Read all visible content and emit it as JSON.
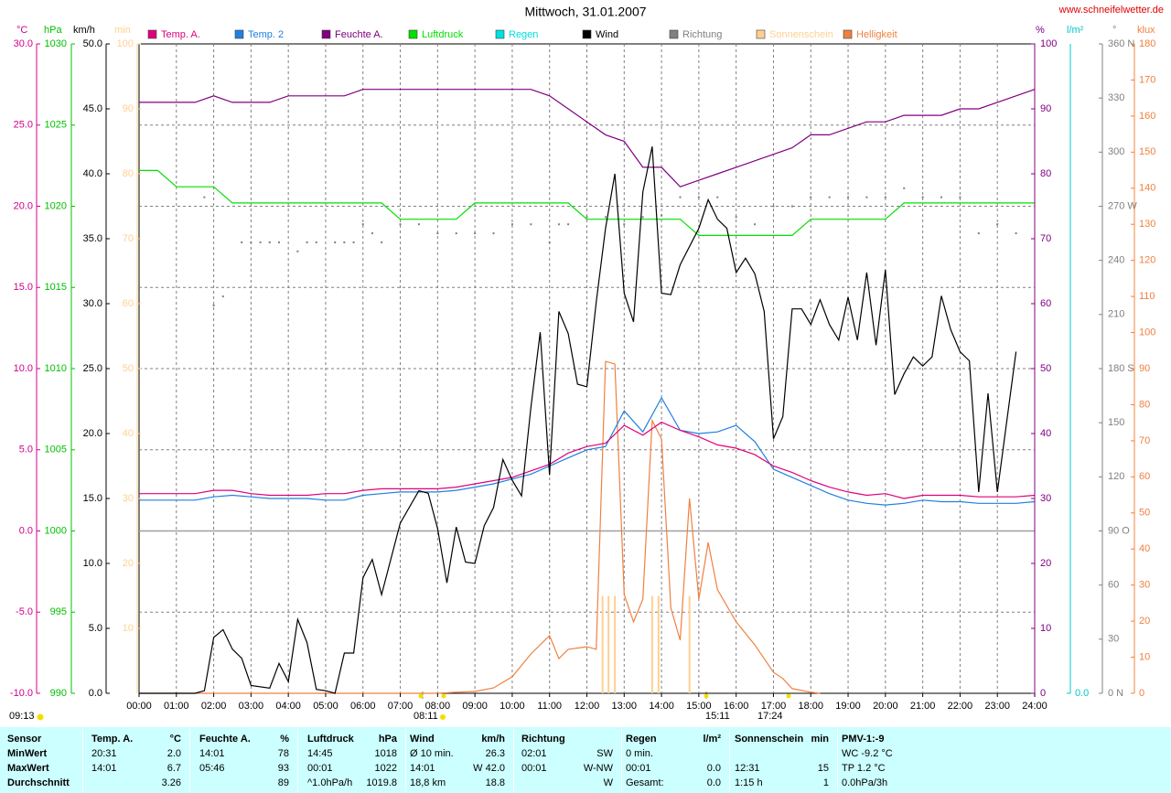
{
  "chart_data": {
    "type": "line",
    "title": "Mittwoch, 31.01.2007",
    "source": "www.schneifelwetter.de",
    "grid": true,
    "xlim": [
      0,
      24
    ],
    "xticks": [
      {
        "value": 0,
        "label": "00:00"
      },
      {
        "value": 1,
        "label": "01:00"
      },
      {
        "value": 2,
        "label": "02:00"
      },
      {
        "value": 3,
        "label": "03:00"
      },
      {
        "value": 4,
        "label": "04:00"
      },
      {
        "value": 5,
        "label": "05:00"
      },
      {
        "value": 6,
        "label": "06:00"
      },
      {
        "value": 7,
        "label": "07:00"
      },
      {
        "value": 8,
        "label": "08:00"
      },
      {
        "value": 9,
        "label": "09:00"
      },
      {
        "value": 10,
        "label": "10:00"
      },
      {
        "value": 11,
        "label": "11:00"
      },
      {
        "value": 12,
        "label": "12:00"
      },
      {
        "value": 13,
        "label": "13:00"
      },
      {
        "value": 14,
        "label": "14:00"
      },
      {
        "value": 15,
        "label": "15:00"
      },
      {
        "value": 16,
        "label": "16:00"
      },
      {
        "value": 17,
        "label": "17:00"
      },
      {
        "value": 18,
        "label": "18:00"
      },
      {
        "value": 19,
        "label": "19:00"
      },
      {
        "value": 20,
        "label": "20:00"
      },
      {
        "value": 21,
        "label": "21:00"
      },
      {
        "value": 22,
        "label": "22:00"
      },
      {
        "value": 23,
        "label": "23:00"
      },
      {
        "value": 24,
        "label": "24:00"
      }
    ],
    "axes": [
      {
        "label": "°C",
        "color": "#d0008c",
        "lim": [
          -10,
          30
        ],
        "ticks": [
          {
            "value": -10,
            "label": "-10.0"
          },
          {
            "value": -5,
            "label": "-5.0"
          },
          {
            "value": 0,
            "label": "0.0"
          },
          {
            "value": 5,
            "label": "5.0"
          },
          {
            "value": 10,
            "label": "10.0"
          },
          {
            "value": 15,
            "label": "15.0"
          },
          {
            "value": 20,
            "label": "20.0"
          },
          {
            "value": 25,
            "label": "25.0"
          },
          {
            "value": 30,
            "label": "30.0"
          }
        ]
      },
      {
        "label": "hPa",
        "color": "#00c000",
        "lim": [
          990,
          1030
        ],
        "ticks": [
          990,
          995,
          1000,
          1005,
          1010,
          1015,
          1020,
          1025,
          1030
        ]
      },
      {
        "label": "km/h",
        "color": "#000000",
        "lim": [
          0,
          50
        ],
        "ticks": [
          {
            "value": 0,
            "label": "0.0"
          },
          {
            "value": 5,
            "label": "5.0"
          },
          {
            "value": 10,
            "label": "10.0"
          },
          {
            "value": 15,
            "label": "15.0"
          },
          {
            "value": 20,
            "label": "20.0"
          },
          {
            "value": 25,
            "label": "25.0"
          },
          {
            "value": 30,
            "label": "30.0"
          },
          {
            "value": 35,
            "label": "35.0"
          },
          {
            "value": 40,
            "label": "40.0"
          },
          {
            "value": 45,
            "label": "45.0"
          },
          {
            "value": 50,
            "label": "50.0"
          }
        ]
      },
      {
        "label": "min",
        "color": "#ffd090",
        "lim": [
          0,
          100
        ],
        "ticks": [
          10,
          20,
          30,
          40,
          50,
          60,
          70,
          80,
          90,
          100
        ]
      },
      {
        "label": "%",
        "color": "#800080",
        "lim": [
          0,
          100
        ],
        "ticks": [
          0,
          10,
          20,
          30,
          40,
          50,
          60,
          70,
          80,
          90,
          100
        ]
      },
      {
        "label": "l/m²",
        "color": "#00c8c8",
        "ticks": [
          {
            "value": 0,
            "label": "0.0"
          }
        ]
      },
      {
        "label": "°",
        "color": "#808080",
        "lim": [
          0,
          360
        ],
        "ticks": [
          {
            "value": 0,
            "label": "0 N"
          },
          30,
          60,
          {
            "value": 90,
            "label": "90 O"
          },
          120,
          150,
          {
            "value": 180,
            "label": "180 S"
          },
          210,
          240,
          {
            "value": 270,
            "label": "270 W"
          },
          300,
          330,
          {
            "value": 360,
            "label": "360 N"
          }
        ]
      },
      {
        "label": "klux",
        "color": "#f08040",
        "lim": [
          0,
          180
        ],
        "ticks": [
          0,
          10,
          20,
          30,
          40,
          50,
          60,
          70,
          80,
          90,
          100,
          110,
          120,
          130,
          140,
          150,
          160,
          170,
          180
        ]
      }
    ],
    "x": [
      0,
      0.5,
      1,
      1.5,
      2,
      2.5,
      3,
      3.5,
      4,
      4.5,
      5,
      5.5,
      6,
      6.5,
      7,
      7.5,
      8,
      8.5,
      9,
      9.5,
      10,
      10.5,
      11,
      11.5,
      12,
      12.5,
      13,
      13.5,
      14,
      14.5,
      15,
      15.5,
      16,
      16.5,
      17,
      17.5,
      18,
      18.5,
      19,
      19.5,
      20,
      20.5,
      21,
      21.5,
      22,
      22.5,
      23,
      23.5,
      24
    ],
    "series": [
      {
        "name": "Temp. A.",
        "color": "#e0007c",
        "axis": "°C",
        "values": [
          2.3,
          2.3,
          2.3,
          2.3,
          2.5,
          2.5,
          2.3,
          2.2,
          2.2,
          2.2,
          2.3,
          2.3,
          2.5,
          2.6,
          2.6,
          2.6,
          2.6,
          2.7,
          2.9,
          3.1,
          3.3,
          3.7,
          4.1,
          4.8,
          5.2,
          5.4,
          6.5,
          5.9,
          6.7,
          6.2,
          5.8,
          5.3,
          5.1,
          4.7,
          4.0,
          3.6,
          3.1,
          2.7,
          2.4,
          2.2,
          2.3,
          2.0,
          2.2,
          2.2,
          2.2,
          2.1,
          2.1,
          2.1,
          2.2
        ]
      },
      {
        "name": "Temp. 2",
        "color": "#2080e0",
        "axis": "°C",
        "values": [
          1.9,
          1.9,
          1.9,
          1.9,
          2.1,
          2.2,
          2.1,
          2.0,
          2.0,
          2.0,
          1.9,
          1.9,
          2.2,
          2.3,
          2.4,
          2.4,
          2.4,
          2.5,
          2.7,
          2.9,
          3.2,
          3.5,
          4.0,
          4.5,
          5.0,
          5.2,
          7.4,
          6.1,
          8.2,
          6.2,
          6.0,
          6.1,
          6.5,
          5.5,
          3.8,
          3.3,
          2.8,
          2.3,
          1.9,
          1.7,
          1.6,
          1.7,
          1.9,
          1.8,
          1.8,
          1.7,
          1.7,
          1.7,
          1.8
        ]
      },
      {
        "name": "Feuchte A.",
        "color": "#800080",
        "axis": "%",
        "values": [
          91,
          91,
          91,
          91,
          92,
          91,
          91,
          91,
          92,
          92,
          92,
          92,
          93,
          93,
          93,
          93,
          93,
          93,
          93,
          93,
          93,
          93,
          92,
          90,
          88,
          86,
          85,
          81,
          81,
          78,
          79,
          80,
          81,
          82,
          83,
          84,
          86,
          86,
          87,
          88,
          88,
          89,
          89,
          89,
          90,
          90,
          91,
          92,
          93
        ]
      },
      {
        "name": "Luftdruck",
        "color": "#00e000",
        "axis": "hPa",
        "values": [
          1022.2,
          1022.2,
          1021.2,
          1021.2,
          1021.2,
          1020.2,
          1020.2,
          1020.2,
          1020.2,
          1020.2,
          1020.2,
          1020.2,
          1020.2,
          1020.2,
          1019.2,
          1019.2,
          1019.2,
          1019.2,
          1020.2,
          1020.2,
          1020.2,
          1020.2,
          1020.2,
          1020.2,
          1019.2,
          1019.2,
          1019.2,
          1019.2,
          1019.2,
          1019.2,
          1018.2,
          1018.2,
          1018.2,
          1018.2,
          1018.2,
          1018.2,
          1019.2,
          1019.2,
          1019.2,
          1019.2,
          1019.2,
          1020.2,
          1020.2,
          1020.2,
          1020.2,
          1020.2,
          1020.2,
          1020.2,
          1020.2
        ]
      },
      {
        "name": "Regen",
        "color": "#00e0e0",
        "axis": "l/m²"
      },
      {
        "name": "Wind",
        "color": "#000000",
        "axis": "km/h",
        "x": [
          0,
          1.5,
          1.75,
          2,
          2.25,
          2.5,
          2.75,
          3,
          3.5,
          3.75,
          4,
          4.25,
          4.5,
          4.75,
          5,
          5.25,
          5.5,
          5.75,
          6,
          6.25,
          6.5,
          7,
          7.5,
          7.75,
          8,
          8.25,
          8.5,
          8.75,
          9,
          9.25,
          9.5,
          9.75,
          10,
          10.25,
          10.5,
          10.75,
          11,
          11.25,
          11.5,
          11.75,
          12,
          12.25,
          12.5,
          12.75,
          13,
          13.25,
          13.5,
          13.75,
          14,
          14.25,
          14.5,
          15,
          15.25,
          15.5,
          15.75,
          16,
          16.25,
          16.5,
          16.75,
          17,
          17.25,
          17.5,
          17.75,
          18,
          18.25,
          18.5,
          18.75,
          19,
          19.25,
          19.5,
          19.75,
          20,
          20.25,
          20.5,
          20.75,
          21,
          21.25,
          21.5,
          21.75,
          22,
          22.25,
          22.5,
          22.75,
          23,
          23.5
        ],
        "values": [
          0,
          0,
          0.2,
          4.3,
          4.9,
          3.4,
          2.7,
          0.6,
          0.4,
          2.3,
          0.9,
          5.7,
          3.9,
          0.3,
          0.2,
          0,
          3.1,
          3.1,
          8.9,
          10.3,
          7.6,
          13.1,
          15.6,
          15.4,
          12.7,
          8.5,
          12.8,
          10.1,
          10.0,
          12.9,
          14.3,
          18.0,
          16.4,
          15.2,
          22.0,
          27.8,
          16.8,
          29.4,
          27.7,
          23.8,
          23.6,
          30.1,
          35.8,
          40.0,
          30.8,
          28.6,
          38.6,
          42.1,
          30.8,
          30.7,
          33.0,
          35.8,
          38.0,
          36.5,
          35.8,
          32.4,
          33.5,
          32.3,
          29.4,
          19.6,
          21.3,
          29.6,
          29.6,
          28.4,
          30.3,
          28.4,
          27.2,
          30.5,
          27.2,
          32.4,
          26.8,
          32.6,
          23.0,
          24.6,
          25.9,
          25.2,
          25.9,
          30.6,
          28.0,
          26.3,
          25.6,
          15.5,
          23.1,
          15.5,
          26.3
        ]
      },
      {
        "name": "Richtung",
        "color": "#808080",
        "axis": "°",
        "type": "scatter",
        "x": [
          1.75,
          2,
          2.25,
          2.75,
          3,
          3.25,
          3.5,
          3.75,
          4.25,
          4.5,
          4.75,
          5.25,
          5.5,
          5.75,
          6,
          6.25,
          6.5,
          7,
          7.5,
          8,
          8.5,
          9,
          9.5,
          10,
          10.5,
          11,
          11.25,
          11.5,
          12,
          12.5,
          13,
          13.5,
          14,
          14.5,
          15,
          15.5,
          16,
          16.5,
          17,
          17.5,
          18,
          18.5,
          19,
          19.5,
          20,
          20.5,
          21,
          21.5,
          22,
          22.5,
          23,
          23.5
        ],
        "values": [
          275,
          215,
          220,
          250,
          250,
          250,
          250,
          250,
          245,
          250,
          250,
          250,
          250,
          250,
          260,
          255,
          250,
          260,
          260,
          255,
          255,
          255,
          255,
          260,
          260,
          250,
          260,
          260,
          264,
          264,
          260,
          264,
          265,
          275,
          275,
          275,
          264,
          260,
          270,
          270,
          275,
          275,
          275,
          275,
          275,
          280,
          275,
          275,
          275,
          255,
          260,
          255
        ]
      },
      {
        "name": "Sonnenschein",
        "color": "#ffd090",
        "axis": "min",
        "type": "bar",
        "x": [
          12.42,
          12.58,
          12.75,
          13.75,
          13.92,
          14.75
        ],
        "values": [
          15,
          15,
          15,
          15,
          15,
          15
        ]
      },
      {
        "name": "Helligkeit",
        "color": "#f08040",
        "axis": "klux",
        "x": [
          0,
          8,
          8.5,
          9,
          9.5,
          10,
          10.5,
          11,
          11.25,
          11.5,
          12,
          12.25,
          12.5,
          12.75,
          13,
          13.25,
          13.5,
          13.75,
          14,
          14.25,
          14.5,
          14.75,
          15,
          15.25,
          15.5,
          16,
          16.5,
          17,
          17.25,
          17.5,
          18,
          18.25
        ],
        "values": [
          0,
          0,
          0.3,
          0.5,
          1.5,
          4.6,
          10.9,
          16,
          9.6,
          12.2,
          12.9,
          12.2,
          92,
          91.3,
          27.4,
          19.8,
          26.1,
          75.6,
          70.5,
          23.6,
          14.7,
          54,
          26.1,
          41.8,
          28.7,
          19.8,
          13.4,
          5.8,
          4.1,
          1.3,
          0.3,
          0
        ]
      }
    ],
    "annotations": [
      "09:13",
      "08:11",
      "15:11",
      "17:24"
    ]
  },
  "table": {
    "header": [
      "Sensor",
      "Temp. A.",
      "°C",
      "Feuchte A.",
      "%",
      "Luftdruck",
      "hPa",
      "Wind",
      "km/h",
      "Richtung",
      null,
      "Regen",
      "l/m²",
      "Sonnenschein",
      "min",
      "PMV-1:-9"
    ],
    "rows": [
      [
        "MinWert",
        "20:31",
        "2.0",
        "14:01",
        "78",
        "14:45",
        "1018",
        "Ø 10 min.",
        "26.3",
        "02:01",
        "SW",
        "0 min.",
        null,
        null,
        null,
        "WC -9.2 °C"
      ],
      [
        "MaxWert",
        "14:01",
        "6.7",
        "05:46",
        "93",
        "00:01",
        "1022",
        "14:01",
        "W 42.0",
        "00:01",
        "W-NW",
        "00:01",
        "0.0",
        "12:31",
        "15",
        "TP 1.2 °C"
      ],
      [
        "Durchschnitt",
        null,
        "3.26",
        null,
        "89",
        "^1.0hPa/h",
        "1019.8",
        "18,8 km",
        "18.8",
        null,
        "W",
        "Gesamt:",
        "0.0",
        "1:15 h",
        "1",
        "0.0hPa/3h"
      ]
    ]
  }
}
